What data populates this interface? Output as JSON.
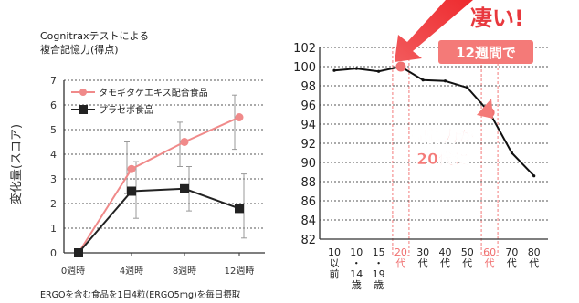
{
  "chart_data": [
    {
      "type": "line",
      "title": "Cognitraxテストによる",
      "subtitle": "複合記憶力(得点)",
      "ylabel": "変化量(スコア)",
      "ylim": [
        0,
        7
      ],
      "yticks": [
        "0",
        "1",
        "2",
        "3",
        "4",
        "5",
        "6",
        "7"
      ],
      "categories": [
        "0週時",
        "4週時",
        "8週時",
        "12週時"
      ],
      "series": [
        {
          "name": "タモギタケエキス配合食品",
          "values": [
            0,
            3.4,
            4.5,
            5.5
          ],
          "color": "#f08a8a",
          "marker": "circle",
          "error_low": [
            0,
            2.4,
            3.5,
            4.2
          ],
          "error_high": [
            0,
            4.5,
            5.3,
            6.4
          ]
        },
        {
          "name": "プラセボ食品",
          "values": [
            0,
            2.5,
            2.6,
            1.8
          ],
          "color": "#222222",
          "marker": "square",
          "error_low": [
            0,
            1.4,
            1.7,
            0.6
          ],
          "error_high": [
            0,
            3.7,
            3.5,
            3.2
          ]
        }
      ],
      "footnote": "ERGOを含む食品を1日4粒(ERGO5mg)を毎日摂取",
      "grid": "dotted-horizontal",
      "legend_position": "top-left"
    },
    {
      "type": "line",
      "ylim": [
        82,
        102
      ],
      "yticks": [
        "82",
        "84",
        "86",
        "88",
        "90",
        "92",
        "94",
        "96",
        "98",
        "100",
        "102"
      ],
      "categories": [
        "10代以前",
        "10代14歳",
        "15代19歳",
        "20代",
        "30代",
        "40代",
        "50代",
        "60代",
        "70代",
        "80代"
      ],
      "category_lines": [
        [
          "10",
          "以",
          "前"
        ],
        [
          "10",
          "・",
          "14",
          "歳"
        ],
        [
          "15",
          "・",
          "19",
          "歳"
        ],
        [
          "20",
          "代"
        ],
        [
          "30",
          "代"
        ],
        [
          "40",
          "代"
        ],
        [
          "50",
          "代"
        ],
        [
          "60",
          "代"
        ],
        [
          "70",
          "代"
        ],
        [
          "80",
          "代"
        ]
      ],
      "highlight_categories": [
        3,
        7
      ],
      "series": [
        {
          "values": [
            99.6,
            99.8,
            99.5,
            100,
            98.6,
            98.5,
            97.8,
            95.2,
            91,
            88.6
          ],
          "color": "#111111",
          "highlight_color": "#f07070"
        }
      ],
      "annotations": {
        "top_text": "凄い!",
        "badge": "12週間で",
        "callout_line1": "記憶力が",
        "callout_line2": "20代に"
      },
      "grid": "dotted-horizontal"
    }
  ],
  "colors": {
    "accent": "#e8383d",
    "pink": "#f08a8a",
    "badge_bg": "#f47a78",
    "callout_text": "#f47a78"
  }
}
